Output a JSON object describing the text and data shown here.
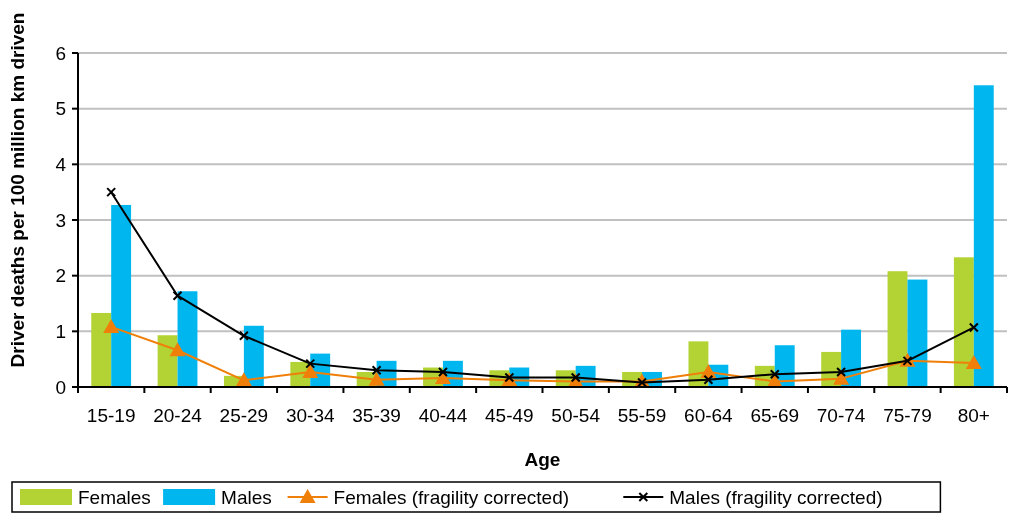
{
  "chart_data": {
    "type": "bar",
    "xlabel": "Age",
    "ylabel": "Driver deaths per 100 million km driven",
    "categories": [
      "15-19",
      "20-24",
      "25-29",
      "30-34",
      "35-39",
      "40-44",
      "45-49",
      "50-54",
      "55-59",
      "60-64",
      "65-69",
      "70-74",
      "75-79",
      "80+"
    ],
    "series": [
      {
        "name": "Females",
        "color": "#b3d335",
        "values": [
          1.33,
          0.93,
          0.2,
          0.45,
          0.27,
          0.35,
          0.3,
          0.3,
          0.27,
          0.82,
          0.38,
          0.63,
          2.08,
          2.33
        ]
      },
      {
        "name": "Males",
        "color": "#00b6ef",
        "values": [
          3.27,
          1.72,
          1.1,
          0.6,
          0.47,
          0.47,
          0.35,
          0.38,
          0.27,
          0.4,
          0.75,
          1.03,
          1.93,
          5.42
        ]
      },
      {
        "name": "Females (fragility corrected)",
        "type": "line",
        "color": "#f07f09",
        "marker": "triangle",
        "values": [
          1.08,
          0.66,
          0.12,
          0.27,
          0.13,
          0.16,
          0.12,
          0.1,
          0.1,
          0.27,
          0.1,
          0.15,
          0.47,
          0.43
        ]
      },
      {
        "name": "Males (fragility corrected)",
        "type": "line",
        "color": "#000000",
        "marker": "cross",
        "values": [
          3.5,
          1.64,
          0.92,
          0.42,
          0.3,
          0.27,
          0.17,
          0.17,
          0.08,
          0.13,
          0.23,
          0.27,
          0.47,
          1.07
        ]
      }
    ],
    "ylim": [
      0,
      6
    ],
    "yticks": [
      0,
      1,
      2,
      3,
      4,
      5,
      6
    ],
    "grid": "y",
    "legend": "bottom"
  }
}
